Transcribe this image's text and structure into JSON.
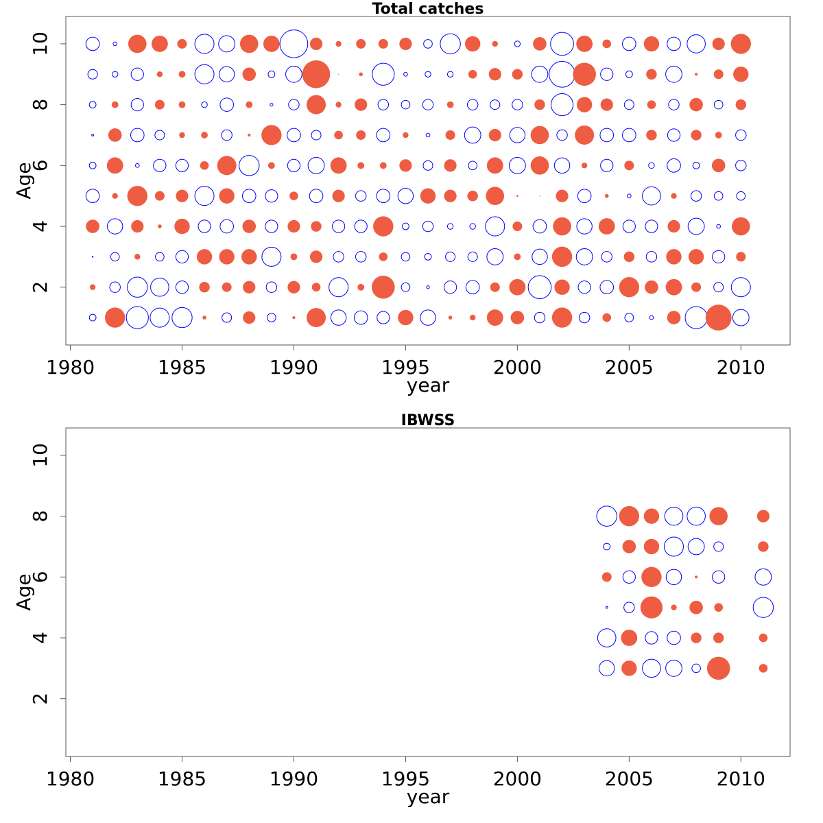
{
  "chart_data": [
    {
      "type": "bubble",
      "title": "Total catches",
      "xlabel": "year",
      "ylabel": "Age",
      "xlim": [
        1979.8,
        2012.2
      ],
      "ylim": [
        0.1,
        10.9
      ],
      "xticks": [
        1980,
        1985,
        1990,
        1995,
        2000,
        2005,
        2010
      ],
      "yticks": [
        2,
        4,
        6,
        8,
        10
      ],
      "positive_color": "#ee5c42",
      "negative_color": "#0000ff",
      "x": [
        1981,
        1982,
        1983,
        1984,
        1985,
        1986,
        1987,
        1988,
        1989,
        1990,
        1991,
        1992,
        1993,
        1994,
        1995,
        1996,
        1997,
        1998,
        1999,
        2000,
        2001,
        2002,
        2003,
        2004,
        2005,
        2006,
        2007,
        2008,
        2009,
        2010
      ],
      "y": [
        1,
        2,
        3,
        4,
        5,
        6,
        7,
        8,
        9,
        10
      ],
      "values": [
        [
          -0.7,
          2.1,
          -2.3,
          -2.0,
          -2.1,
          0.4,
          -1.0,
          1.3,
          -0.9,
          0.3,
          2.0,
          -1.6,
          -1.4,
          -1.3,
          1.6,
          -1.6,
          0.4,
          0.6,
          1.7,
          1.4,
          -1.1,
          2.1,
          -1.1,
          0.9,
          -0.9,
          -0.4,
          1.4,
          -2.3,
          2.7,
          -1.7
        ],
        [
          0.6,
          -1.1,
          -2.1,
          -1.9,
          -1.3,
          1.1,
          1.0,
          1.3,
          -1.1,
          1.3,
          0.9,
          -2.0,
          0.7,
          2.4,
          -0.9,
          -0.3,
          -1.3,
          -1.4,
          1.0,
          1.7,
          -2.4,
          1.6,
          -1.3,
          -1.4,
          2.1,
          1.4,
          1.7,
          1.0,
          -1.0,
          -2.0
        ],
        [
          -0.1,
          -0.9,
          0.6,
          -0.9,
          -1.3,
          1.6,
          1.6,
          1.6,
          -2.0,
          0.7,
          1.3,
          -1.1,
          -1.1,
          0.9,
          -0.9,
          -0.7,
          -1.0,
          -1.0,
          -1.7,
          0.7,
          -1.6,
          2.1,
          -1.7,
          -1.1,
          1.1,
          -1.1,
          1.6,
          1.6,
          -1.3,
          1.0
        ],
        [
          1.4,
          -1.6,
          1.3,
          0.4,
          1.6,
          -1.3,
          -1.4,
          1.4,
          -1.3,
          1.3,
          1.1,
          -1.3,
          -1.3,
          2.1,
          -0.7,
          -1.1,
          -0.6,
          -0.6,
          -2.0,
          1.0,
          -1.4,
          1.9,
          -1.6,
          1.7,
          -1.3,
          -1.3,
          1.3,
          -1.7,
          -0.4,
          1.9
        ],
        [
          -1.4,
          0.6,
          2.1,
          1.0,
          1.3,
          -2.0,
          1.6,
          -1.4,
          -1.3,
          0.9,
          -1.4,
          1.3,
          -1.1,
          -1.4,
          -1.6,
          1.6,
          1.3,
          1.1,
          1.9,
          0.2,
          0.1,
          1.3,
          -1.4,
          0.4,
          -0.4,
          -1.9,
          0.6,
          -1.1,
          -0.9,
          -0.9
        ],
        [
          -0.7,
          1.7,
          -0.4,
          -1.3,
          -1.3,
          0.9,
          2.0,
          -2.1,
          0.7,
          -1.3,
          -1.7,
          1.7,
          0.7,
          0.7,
          1.3,
          -1.0,
          1.3,
          -0.9,
          1.7,
          -1.7,
          1.9,
          -1.6,
          0.6,
          -1.3,
          1.0,
          -0.6,
          -1.4,
          -0.7,
          1.4,
          -1.1
        ],
        [
          -0.2,
          1.4,
          -1.4,
          -1.0,
          0.6,
          0.7,
          -1.1,
          0.3,
          2.1,
          -1.4,
          -1.0,
          0.9,
          1.0,
          -1.4,
          0.6,
          -0.4,
          1.0,
          -1.7,
          1.3,
          -1.6,
          1.9,
          -1.1,
          2.0,
          -1.4,
          -1.4,
          1.1,
          -1.3,
          1.1,
          0.7,
          -1.1
        ],
        [
          -0.7,
          0.7,
          -1.3,
          1.0,
          0.7,
          -0.6,
          -1.4,
          0.7,
          -0.3,
          -1.1,
          2.0,
          0.6,
          1.3,
          -1.1,
          -0.9,
          -1.1,
          0.7,
          -1.1,
          -1.0,
          -1.1,
          1.1,
          -2.3,
          1.6,
          1.3,
          -1.0,
          0.9,
          -1.1,
          1.4,
          -0.9,
          1.1
        ],
        [
          -1.0,
          -0.6,
          -1.3,
          0.6,
          0.7,
          -2.0,
          -1.6,
          1.4,
          -0.7,
          -1.7,
          2.9,
          0.1,
          0.4,
          -2.3,
          -0.4,
          -0.6,
          -0.6,
          0.9,
          1.3,
          1.1,
          -1.7,
          -2.7,
          2.4,
          -1.3,
          -0.7,
          1.1,
          -1.7,
          0.3,
          1.0,
          1.6
        ],
        [
          -1.4,
          -0.4,
          1.9,
          1.7,
          1.0,
          -2.0,
          -1.7,
          1.9,
          1.7,
          -2.9,
          1.3,
          0.6,
          1.0,
          1.0,
          1.3,
          -0.9,
          -2.1,
          1.6,
          0.6,
          -0.6,
          1.4,
          -2.4,
          1.7,
          0.9,
          -1.4,
          1.6,
          -1.4,
          -1.9,
          1.3,
          2.1
        ]
      ]
    },
    {
      "type": "bubble",
      "title": "IBWSS",
      "xlabel": "year",
      "ylabel": "Age",
      "xlim": [
        1979.8,
        2012.2
      ],
      "ylim": [
        0.1,
        10.9
      ],
      "xticks": [
        1980,
        1985,
        1990,
        1995,
        2000,
        2005,
        2010
      ],
      "yticks": [
        2,
        4,
        6,
        8,
        10
      ],
      "positive_color": "#ee5c42",
      "negative_color": "#0000ff",
      "x": [
        2004,
        2005,
        2006,
        2007,
        2008,
        2009,
        2010,
        2011
      ],
      "y": [
        3,
        4,
        5,
        6,
        7,
        8
      ],
      "values": [
        [
          -1.6,
          1.6,
          -1.9,
          -1.7,
          -0.9,
          2.4,
          null,
          0.9
        ],
        [
          -1.9,
          1.7,
          -1.3,
          -1.4,
          1.1,
          1.1,
          null,
          0.9
        ],
        [
          -0.2,
          -1.1,
          2.3,
          0.6,
          1.4,
          0.9,
          null,
          -2.1
        ],
        [
          1.0,
          -1.3,
          2.1,
          -1.6,
          0.3,
          -1.3,
          null,
          -1.7
        ],
        [
          -0.7,
          1.4,
          1.6,
          -2.0,
          -1.7,
          -1.0,
          null,
          1.1
        ],
        [
          -2.1,
          2.1,
          1.6,
          -1.9,
          -1.9,
          1.9,
          null,
          1.3
        ]
      ]
    }
  ]
}
